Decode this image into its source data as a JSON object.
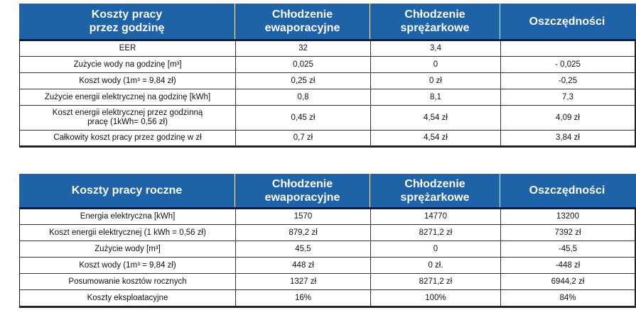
{
  "table_hourly": {
    "headers": [
      "Koszty pracy\nprzez godzinę",
      "Chłodzenie\newaporacyjne",
      "Chłodzenie\nsprężarkowe",
      "Oszczędności"
    ],
    "rows": [
      [
        "EER",
        "32",
        "3,4",
        ""
      ],
      [
        "Zużycie wody na godzinę [m³]",
        "0,025",
        "0",
        "- 0,025"
      ],
      [
        "Koszt wody (1m³ = 9,84 zł)",
        "0,25 zł",
        "0 zł",
        "-0,25"
      ],
      [
        "Zużycie energii elektrycznej na godzinę [kWh]",
        "0,8",
        "8,1",
        "7,3"
      ],
      [
        "Koszt energii elektrycznej przez godzinną\npracę (1kWh= 0,56 zł)",
        "0,45 zł",
        "4,54 zł",
        "4,09 zł"
      ],
      [
        "Całkowity koszt pracy przez godzinę w zł",
        "0,7 zł",
        "4,54 zł",
        "3,84 zł"
      ]
    ]
  },
  "table_yearly": {
    "headers": [
      "Koszty pracy roczne",
      "Chłodzenie\newaporacyjne",
      "Chłodzenie\nsprężarkowe",
      "Oszczędności"
    ],
    "rows": [
      [
        "Energia elektryczna [kWh]",
        "1570",
        "14770",
        "13200"
      ],
      [
        "Koszt energii elektrycznej (1 kWh = 0,56 zł)",
        "879,2 zł",
        "8271,2 zł",
        "7392 zł"
      ],
      [
        "Zużycie wody [m³]",
        "45,5",
        "0",
        "-45,5"
      ],
      [
        "Koszt wody (1m³ = 9,84 zł)",
        "448 zł",
        "0 zł.",
        "-448 zł"
      ],
      [
        "Posumowanie kosztów rocznych",
        "1327 zł",
        "8271,2 zł",
        "6944,2 zł"
      ],
      [
        "Koszty eksploatacyjne",
        "16%",
        "100%",
        "84%"
      ]
    ]
  },
  "colors": {
    "header_bg": "#1e62a8",
    "header_text": "#ffffff",
    "header_rule": "#0a1c4a"
  }
}
